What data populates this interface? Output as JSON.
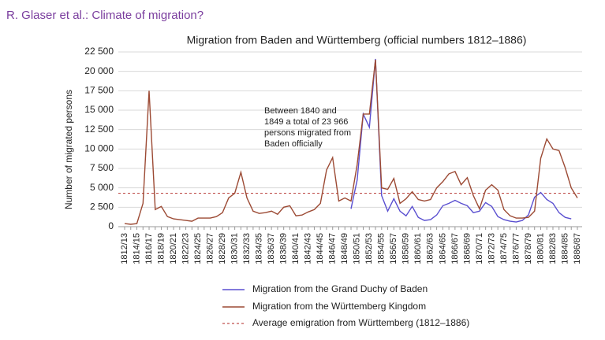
{
  "header": "R. Glaser et al.: Climate of migration?",
  "chart_data": {
    "type": "line",
    "title": "Migration from Baden and Württemberg (official numbers 1812–1886)",
    "y_label": "Number of migrated persons",
    "annotation": [
      "Between  1840 and",
      "1849 a total of 23 966",
      "persons migrated from",
      "Baden officially"
    ],
    "categories": [
      "1812/13",
      null,
      "1814/15",
      null,
      "1816/17",
      null,
      "1818/19",
      null,
      "1820/21",
      null,
      "1822/23",
      null,
      "1824/25",
      null,
      "1826/27",
      null,
      "1828/29",
      null,
      "1830/31",
      null,
      "1832/33",
      null,
      "1834/35",
      null,
      "1836/37",
      null,
      "1838/39",
      null,
      "1840/41",
      null,
      "1842/43",
      null,
      "1844/45",
      null,
      "1846/47",
      null,
      "1848/49",
      null,
      "1850/51",
      null,
      "1852/53",
      null,
      "1854/55",
      null,
      "1856/57",
      null,
      "1858/59",
      null,
      "1860/61",
      null,
      "1862/63",
      null,
      "1864/65",
      null,
      "1866/67",
      null,
      "1868/69",
      null,
      "1870/71",
      null,
      "1872/73",
      null,
      "1874/75",
      null,
      "1876/77",
      null,
      "1878/79",
      null,
      "1880/81",
      null,
      "1882/83",
      null,
      "1884/85",
      null,
      "1886/87"
    ],
    "series": [
      {
        "name": "Migration from the Grand Duchy of Baden",
        "color": "#5a4fd0",
        "values": [
          null,
          null,
          null,
          null,
          null,
          null,
          null,
          null,
          null,
          null,
          null,
          null,
          null,
          null,
          null,
          null,
          null,
          null,
          null,
          null,
          null,
          null,
          null,
          null,
          null,
          null,
          null,
          null,
          null,
          null,
          null,
          null,
          null,
          null,
          null,
          null,
          null,
          2300,
          6000,
          14500,
          12800,
          21600,
          4000,
          2000,
          3600,
          2000,
          1400,
          2600,
          1200,
          800,
          900,
          1500,
          2700,
          3000,
          3400,
          3000,
          2700,
          1800,
          2000,
          3100,
          2600,
          1300,
          900,
          700,
          600,
          800,
          1500,
          3800,
          4400,
          3500,
          3000,
          1800,
          1200,
          1000,
          null
        ]
      },
      {
        "name": "Migration from the Württemberg Kingdom",
        "color": "#9c4a34",
        "values": [
          400,
          300,
          400,
          3000,
          17500,
          2200,
          2600,
          1300,
          1000,
          900,
          800,
          700,
          1100,
          1100,
          1100,
          1300,
          1800,
          3700,
          4300,
          7000,
          3700,
          2000,
          1700,
          1800,
          2000,
          1600,
          2500,
          2700,
          1400,
          1500,
          1900,
          2200,
          3000,
          7300,
          8900,
          3300,
          3700,
          3300,
          8000,
          14500,
          14500,
          21500,
          5000,
          4800,
          6200,
          3000,
          3600,
          4500,
          3500,
          3300,
          3500,
          5000,
          5800,
          6800,
          7100,
          5400,
          6300,
          4000,
          2300,
          4700,
          5400,
          4700,
          2200,
          1400,
          1100,
          1100,
          1200,
          2000,
          8800,
          11300,
          10000,
          9800,
          7600,
          5000,
          3700
        ]
      }
    ],
    "average": {
      "name": "Average emigration from Württemberg (1812–1886)",
      "color": "#c0504d",
      "value": 4300
    },
    "ylim": [
      0,
      22500
    ],
    "yticks": [
      0,
      {
        "value": 2500,
        "label": "2 500"
      },
      {
        "value": 5000,
        "label": "5 000"
      },
      {
        "value": 7500,
        "label": "7 500"
      },
      {
        "value": 10000,
        "label": "10 000"
      },
      {
        "value": 12500,
        "label": "12 500"
      },
      {
        "value": 15000,
        "label": "15 000"
      },
      {
        "value": 17500,
        "label": "17 500"
      },
      {
        "value": 20000,
        "label": "20 000"
      },
      {
        "value": 22500,
        "label": "22 500"
      }
    ],
    "grid": true
  }
}
